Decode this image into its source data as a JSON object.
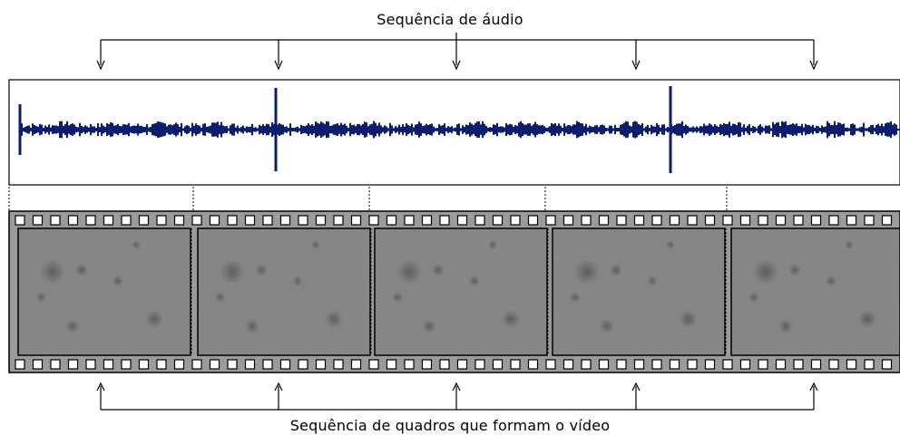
{
  "labels": {
    "audio_sequence": "Sequência de áudio",
    "video_frames": "Sequência de quadros que formam o vídeo"
  },
  "frame_count": 5,
  "colors": {
    "waveform": "#0d1d6e",
    "film_strip": "#9b9b9b",
    "frame_image": "#8c8c8c",
    "lines": "#000000"
  }
}
